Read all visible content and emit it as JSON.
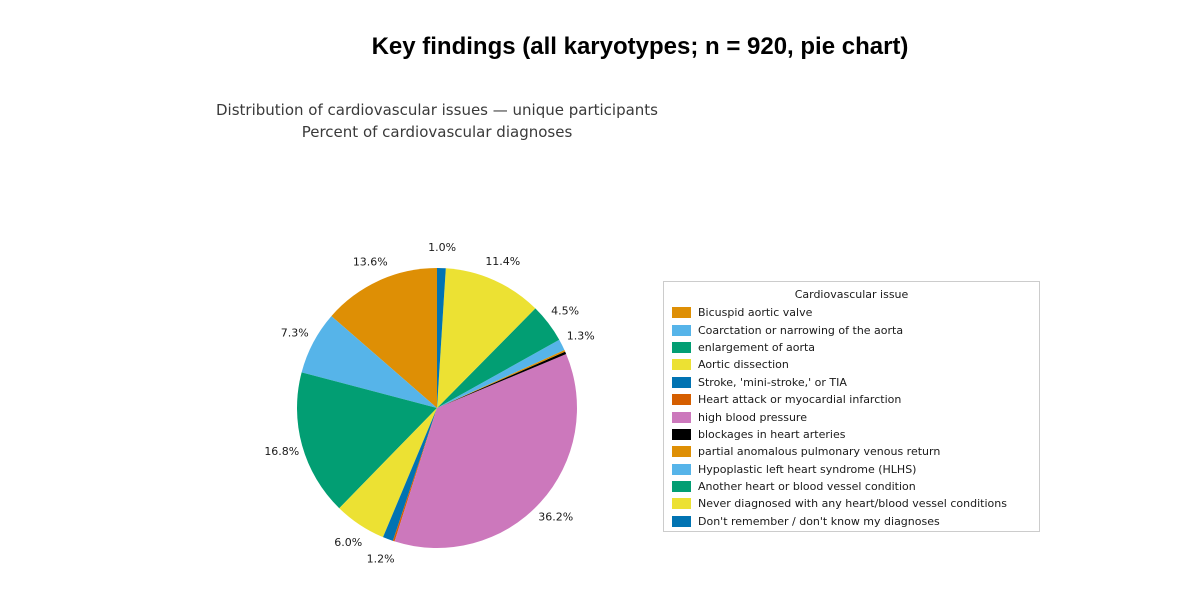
{
  "title": "Key findings (all karyotypes; n = 920, pie chart)",
  "chart": {
    "subtitle_line1": "Distribution of cardiovascular issues — unique participants",
    "subtitle_line2": "Percent of cardiovascular diagnoses"
  },
  "legend": {
    "title": "Cardiovascular issue"
  },
  "chart_data": {
    "type": "pie",
    "title": "Distribution of cardiovascular issues — unique participants",
    "subtitle": "Percent of cardiovascular diagnoses",
    "figure_title": "Key findings (all karyotypes; n = 920, pie chart)",
    "unit": "percent",
    "start_angle": 90,
    "counterclockwise": true,
    "legend_title": "Cardiovascular issue",
    "legend_position": "right",
    "slices": [
      {
        "label": "Bicuspid aortic valve",
        "value": 13.6,
        "color": "#de8f05",
        "pct_label": "13.6%"
      },
      {
        "label": "Coarctation or narrowing of the aorta",
        "value": 7.3,
        "color": "#56b4e9",
        "pct_label": "7.3%"
      },
      {
        "label": "enlargement of aorta",
        "value": 16.8,
        "color": "#029e73",
        "pct_label": "16.8%"
      },
      {
        "label": "Aortic dissection",
        "value": 6.0,
        "color": "#ece133",
        "pct_label": "6.0%"
      },
      {
        "label": "Stroke, 'mini-stroke,' or TIA",
        "value": 1.2,
        "color": "#0173b2",
        "pct_label": "1.2%"
      },
      {
        "label": "Heart attack or myocardial infarction",
        "value": 0.2,
        "color": "#d55e00",
        "pct_label": ""
      },
      {
        "label": "high blood pressure",
        "value": 36.2,
        "color": "#cc78bc",
        "pct_label": "36.2%"
      },
      {
        "label": "blockages in heart arteries",
        "value": 0.3,
        "color": "#000000",
        "pct_label": ""
      },
      {
        "label": "partial anomalous pulmonary venous return",
        "value": 0.2,
        "color": "#de8f05",
        "pct_label": ""
      },
      {
        "label": "Hypoplastic left heart syndrome (HLHS)",
        "value": 1.3,
        "color": "#56b4e9",
        "pct_label": "1.3%"
      },
      {
        "label": "Another heart or blood vessel condition",
        "value": 4.5,
        "color": "#029e73",
        "pct_label": "4.5%"
      },
      {
        "label": "Never diagnosed with any heart/blood vessel conditions",
        "value": 11.4,
        "color": "#ece133",
        "pct_label": "11.4%"
      },
      {
        "label": "Don't remember / don't know my diagnoses",
        "value": 1.0,
        "color": "#0173b2",
        "pct_label": "1.0%"
      }
    ]
  }
}
